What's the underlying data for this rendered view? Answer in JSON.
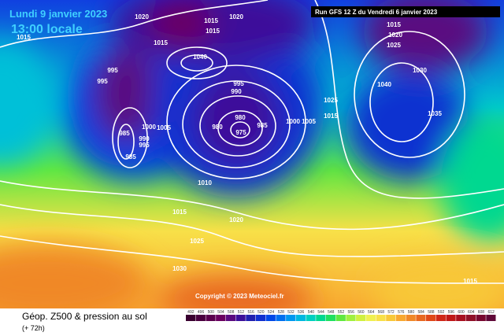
{
  "header": {
    "date": "Lundi 9 janvier 2023",
    "time": "13:00 locale",
    "run": "Run GFS 12 Z du Vendredi 6 janvier 2023"
  },
  "footer": {
    "title": "Géop. Z500 & pression au sol",
    "subtitle": "(+ 72h)",
    "copyright": "Copyright © 2023 Meteociel.fr"
  },
  "isobar_labels": [
    1020,
    1015,
    1020,
    1015,
    1015,
    1015,
    1040,
    995,
    995,
    995,
    990,
    980,
    975,
    980,
    985,
    1000,
    1005,
    1015,
    1025,
    1040,
    1035,
    1030,
    1025,
    1020,
    1015,
    1010,
    1015,
    1020,
    1025,
    1030,
    1015,
    985,
    985,
    990,
    995,
    1000,
    1005
  ],
  "legend": {
    "labels": [
      492,
      496,
      500,
      504,
      508,
      512,
      516,
      520,
      524,
      528,
      532,
      536,
      540,
      544,
      548,
      552,
      556,
      560,
      564,
      568,
      572,
      576,
      580,
      584,
      588,
      592,
      596,
      600,
      604,
      608,
      612
    ],
    "colors": [
      "#3a0030",
      "#4a003f",
      "#5a004e",
      "#6a0060",
      "#5a0a80",
      "#3c109a",
      "#2020b0",
      "#1030d0",
      "#0048e8",
      "#0070f0",
      "#0098f0",
      "#00b8e0",
      "#00d0c0",
      "#00d890",
      "#20e060",
      "#60e840",
      "#a0f040",
      "#d0f040",
      "#f0f050",
      "#f8e048",
      "#f8c838",
      "#f8a830",
      "#f08828",
      "#e86820",
      "#e04818",
      "#d02818",
      "#c01818",
      "#a81020",
      "#901028",
      "#780830",
      "#600838"
    ]
  }
}
